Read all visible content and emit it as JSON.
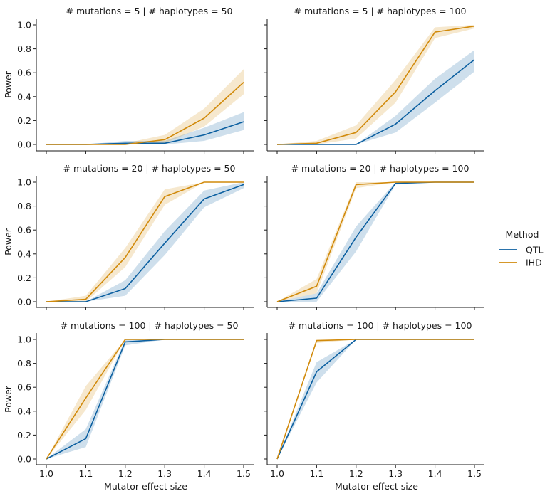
{
  "chart_data": {
    "type": "line",
    "layout": "facet-grid 3 rows x 2 columns",
    "xlabel": "Mutator effect size",
    "ylabel": "Power",
    "x": [
      1.0,
      1.1,
      1.2,
      1.3,
      1.4,
      1.5
    ],
    "x_ticks": [
      "1.0",
      "1.1",
      "1.2",
      "1.3",
      "1.4",
      "1.5"
    ],
    "y_ticks": [
      "0.0",
      "0.2",
      "0.4",
      "0.6",
      "0.8",
      "1.0"
    ],
    "xlim": [
      0.975,
      1.525
    ],
    "ylim": [
      -0.05,
      1.05
    ],
    "grid": false,
    "legend": {
      "title": "Method",
      "placement": "right",
      "entries": [
        {
          "name": "QTL",
          "color": "#0b5fa0"
        },
        {
          "name": "IHD",
          "color": "#d18a0b"
        }
      ]
    },
    "panels": [
      {
        "title": "# mutations = 5 | # haplotypes = 50",
        "series": [
          {
            "name": "QTL",
            "values": [
              0.0,
              0.0,
              0.01,
              0.01,
              0.08,
              0.19
            ],
            "ci_low": [
              0.0,
              0.0,
              0.0,
              0.0,
              0.03,
              0.12
            ],
            "ci_high": [
              0.0,
              0.0,
              0.03,
              0.03,
              0.14,
              0.27
            ]
          },
          {
            "name": "IHD",
            "values": [
              0.0,
              0.0,
              0.0,
              0.04,
              0.22,
              0.52
            ],
            "ci_low": [
              0.0,
              0.0,
              0.0,
              0.01,
              0.15,
              0.42
            ],
            "ci_high": [
              0.0,
              0.0,
              0.01,
              0.08,
              0.3,
              0.63
            ]
          }
        ]
      },
      {
        "title": "# mutations = 5 | # haplotypes = 100",
        "series": [
          {
            "name": "QTL",
            "values": [
              0.0,
              0.0,
              0.0,
              0.17,
              0.45,
              0.71
            ],
            "ci_low": [
              0.0,
              0.0,
              0.0,
              0.1,
              0.35,
              0.61
            ],
            "ci_high": [
              0.0,
              0.0,
              0.0,
              0.24,
              0.55,
              0.79
            ]
          },
          {
            "name": "IHD",
            "values": [
              0.0,
              0.01,
              0.1,
              0.44,
              0.94,
              0.99
            ],
            "ci_low": [
              0.0,
              0.0,
              0.05,
              0.35,
              0.89,
              0.97
            ],
            "ci_high": [
              0.0,
              0.03,
              0.16,
              0.54,
              0.98,
              1.0
            ]
          }
        ]
      },
      {
        "title": "# mutations = 20 | # haplotypes = 50",
        "series": [
          {
            "name": "QTL",
            "values": [
              0.0,
              0.0,
              0.11,
              0.49,
              0.86,
              0.98
            ],
            "ci_low": [
              0.0,
              0.0,
              0.05,
              0.39,
              0.79,
              0.95
            ],
            "ci_high": [
              0.0,
              0.0,
              0.18,
              0.59,
              0.93,
              1.0
            ]
          },
          {
            "name": "IHD",
            "values": [
              0.0,
              0.02,
              0.37,
              0.88,
              1.0,
              1.0
            ],
            "ci_low": [
              0.0,
              0.0,
              0.29,
              0.81,
              1.0,
              1.0
            ],
            "ci_high": [
              0.0,
              0.05,
              0.45,
              0.94,
              1.0,
              1.0
            ]
          }
        ]
      },
      {
        "title": "# mutations = 20 | # haplotypes = 100",
        "series": [
          {
            "name": "QTL",
            "values": [
              0.0,
              0.03,
              0.54,
              0.99,
              1.0,
              1.0
            ],
            "ci_low": [
              0.0,
              0.0,
              0.42,
              0.98,
              1.0,
              1.0
            ],
            "ci_high": [
              0.0,
              0.07,
              0.63,
              1.0,
              1.0,
              1.0
            ]
          },
          {
            "name": "IHD",
            "values": [
              0.0,
              0.13,
              0.98,
              1.0,
              1.0,
              1.0
            ],
            "ci_low": [
              0.0,
              0.07,
              0.95,
              1.0,
              1.0,
              1.0
            ],
            "ci_high": [
              0.0,
              0.19,
              1.0,
              1.0,
              1.0,
              1.0
            ]
          }
        ]
      },
      {
        "title": "# mutations = 100 | # haplotypes = 50",
        "series": [
          {
            "name": "QTL",
            "values": [
              0.0,
              0.17,
              0.98,
              1.0,
              1.0,
              1.0
            ],
            "ci_low": [
              0.0,
              0.1,
              0.95,
              1.0,
              1.0,
              1.0
            ],
            "ci_high": [
              0.0,
              0.25,
              1.0,
              1.0,
              1.0,
              1.0
            ]
          },
          {
            "name": "IHD",
            "values": [
              0.0,
              0.51,
              1.0,
              1.0,
              1.0,
              1.0
            ],
            "ci_low": [
              0.0,
              0.41,
              1.0,
              1.0,
              1.0,
              1.0
            ],
            "ci_high": [
              0.0,
              0.61,
              1.0,
              1.0,
              1.0,
              1.0
            ]
          }
        ]
      },
      {
        "title": "# mutations = 100 | # haplotypes = 100",
        "series": [
          {
            "name": "QTL",
            "values": [
              0.0,
              0.73,
              1.0,
              1.0,
              1.0,
              1.0
            ],
            "ci_low": [
              0.0,
              0.64,
              1.0,
              1.0,
              1.0,
              1.0
            ],
            "ci_high": [
              0.0,
              0.81,
              1.0,
              1.0,
              1.0,
              1.0
            ]
          },
          {
            "name": "IHD",
            "values": [
              0.0,
              0.99,
              1.0,
              1.0,
              1.0,
              1.0
            ],
            "ci_low": [
              0.0,
              0.97,
              1.0,
              1.0,
              1.0,
              1.0
            ],
            "ci_high": [
              0.0,
              1.0,
              1.0,
              1.0,
              1.0,
              1.0
            ]
          }
        ]
      }
    ]
  }
}
